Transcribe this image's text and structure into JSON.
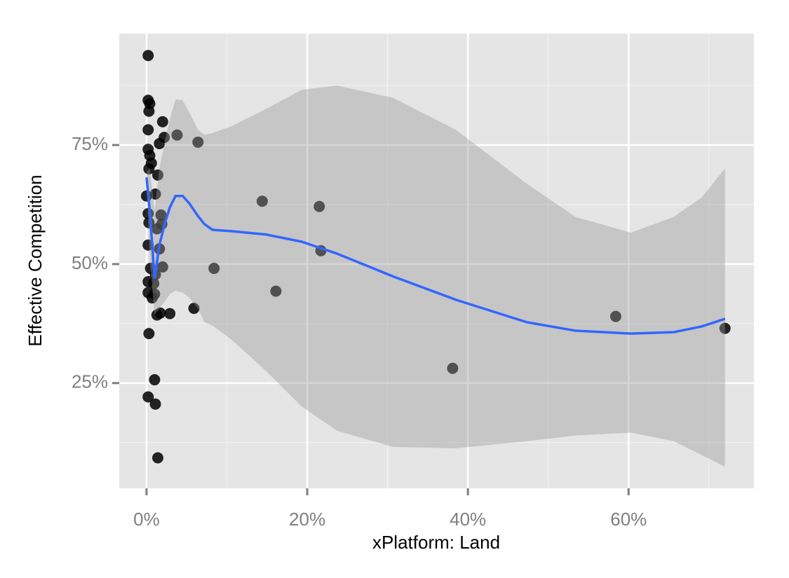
{
  "chart_data": {
    "type": "scatter",
    "x_label": "xPlatform: Land",
    "y_label": "Effective Competition",
    "xlim": [
      -3.4,
      75.6
    ],
    "ylim": [
      2.9,
      98.4
    ],
    "xticks": [
      {
        "value": 0,
        "label": "0%"
      },
      {
        "value": 20,
        "label": "20%"
      },
      {
        "value": 40,
        "label": "40%"
      },
      {
        "value": 60,
        "label": "60%"
      }
    ],
    "yticks": [
      {
        "value": 25,
        "label": "25%"
      },
      {
        "value": 50,
        "label": "50%"
      },
      {
        "value": 75,
        "label": "75%"
      }
    ],
    "xminorticks": [
      10,
      30,
      50,
      70
    ],
    "yminorticks": [
      12.5,
      37.5,
      62.5,
      87.5
    ],
    "grid": true,
    "point_color": "#000000",
    "x": [
      0.2,
      0.2,
      0.4,
      0.3,
      0.2,
      2.0,
      2.2,
      1.6,
      3.8,
      6.4,
      0.2,
      0.4,
      0.6,
      0.3,
      1.4,
      1.1,
      0,
      14.4,
      21.5,
      0.2,
      1.8,
      0.3,
      1.9,
      1.3,
      0.2,
      1.6,
      21.7,
      0.5,
      2.0,
      8.4,
      1.1,
      0.2,
      0.9,
      16.1,
      0.2,
      1.0,
      0.7,
      5.9,
      1.7,
      2.9,
      1.3,
      58.4,
      72.0,
      0.3,
      38.1,
      1.0,
      0.2,
      1.1,
      1.4
    ],
    "values": [
      93.8,
      84.4,
      83.7,
      82.1,
      78.2,
      79.9,
      76.6,
      75.3,
      77.1,
      75.6,
      74.1,
      72.8,
      71.2,
      70.0,
      68.7,
      64.7,
      64.3,
      63.2,
      62.1,
      60.6,
      60.3,
      58.7,
      58.4,
      57.4,
      54.0,
      53.2,
      52.8,
      49.1,
      49.4,
      49.1,
      47.8,
      46.3,
      45.9,
      44.3,
      44.0,
      43.7,
      42.9,
      40.7,
      39.7,
      39.6,
      39.3,
      39.0,
      36.5,
      35.4,
      28.1,
      25.7,
      22.1,
      20.6,
      9.3
    ],
    "smooth": {
      "color": "#3366ff",
      "band_color": "#999999",
      "x": [
        0,
        0.4,
        1.0,
        1.6,
        2.3,
        2.9,
        3.6,
        4.5,
        5.3,
        6.4,
        7.2,
        8.2,
        10.6,
        14.9,
        19.3,
        23.7,
        30.7,
        38.5,
        47.3,
        53.4,
        60.3,
        65.6,
        69.1,
        72.0
      ],
      "y": [
        68.2,
        61.3,
        46.9,
        54.0,
        58.7,
        61.9,
        64.3,
        64.3,
        62.8,
        60.1,
        58.4,
        57.2,
        56.9,
        56.2,
        54.7,
        52.2,
        47.4,
        42.5,
        37.8,
        36.0,
        35.4,
        35.7,
        36.9,
        38.5
      ],
      "upper": [
        69.4,
        70.1,
        61.3,
        70.1,
        76.0,
        80.4,
        84.6,
        84.4,
        81.9,
        78.2,
        77.2,
        77.5,
        79.0,
        82.6,
        86.6,
        87.5,
        84.9,
        78.2,
        66.9,
        59.9,
        56.6,
        59.9,
        64.0,
        70.1
      ],
      "lower": [
        66.9,
        51.0,
        39.3,
        40.7,
        42.2,
        43.7,
        44.4,
        44.0,
        43.0,
        40.7,
        37.8,
        37.1,
        34.1,
        27.5,
        20.1,
        15.0,
        11.6,
        11.3,
        12.8,
        14.0,
        14.6,
        12.8,
        9.9,
        7.4
      ]
    }
  }
}
